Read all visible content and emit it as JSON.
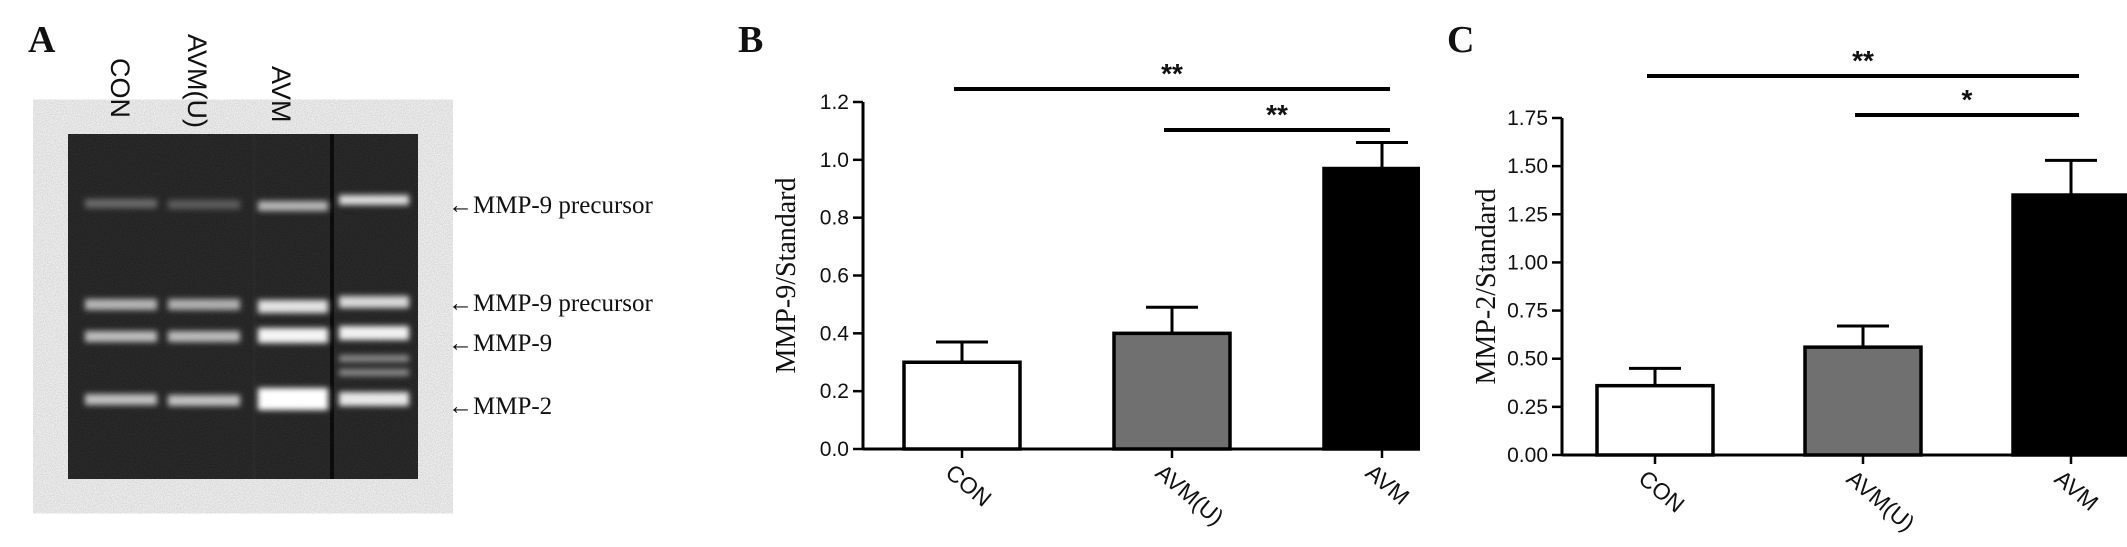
{
  "panels": {
    "a": {
      "letter": "A"
    },
    "b": {
      "letter": "B"
    },
    "c": {
      "letter": "C"
    }
  },
  "gel": {
    "lane_labels": [
      "CON",
      "AVM(U)",
      "AVM"
    ],
    "band_labels": [
      "←MMP-9 precursor",
      "←MMP-9 precursor",
      "←MMP-9",
      "←MMP-2"
    ]
  },
  "chart_data": [
    {
      "type": "bar",
      "panel": "B",
      "categories": [
        "CON",
        "AVM(U)",
        "AVM"
      ],
      "values": [
        0.3,
        0.4,
        0.97
      ],
      "errors": [
        0.07,
        0.09,
        0.09
      ],
      "colors": [
        "#ffffff",
        "#707070",
        "#000000"
      ],
      "ylabel": "MMP-9/Standard",
      "ylim": [
        0,
        1.2
      ],
      "yticks": [
        "0.0",
        "0.2",
        "0.4",
        "0.6",
        "0.8",
        "1.0",
        "1.2"
      ],
      "significance": [
        {
          "from": "CON",
          "to": "AVM",
          "label": "**"
        },
        {
          "from": "AVM(U)",
          "to": "AVM",
          "label": "**"
        }
      ]
    },
    {
      "type": "bar",
      "panel": "C",
      "categories": [
        "CON",
        "AVM(U)",
        "AVM"
      ],
      "values": [
        0.36,
        0.56,
        1.35
      ],
      "errors": [
        0.09,
        0.11,
        0.18
      ],
      "colors": [
        "#ffffff",
        "#707070",
        "#000000"
      ],
      "ylabel": "MMP-2/Standard",
      "ylim": [
        0,
        1.75
      ],
      "yticks": [
        "0.00",
        "0.25",
        "0.50",
        "0.75",
        "1.00",
        "1.25",
        "1.50",
        "1.75"
      ],
      "significance": [
        {
          "from": "CON",
          "to": "AVM",
          "label": "**"
        },
        {
          "from": "AVM(U)",
          "to": "AVM",
          "label": "*"
        }
      ]
    }
  ]
}
